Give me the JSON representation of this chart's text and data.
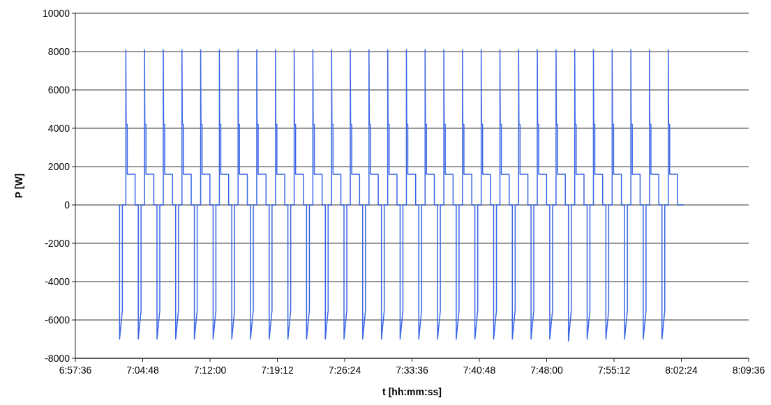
{
  "chart_data": {
    "type": "line",
    "xlabel": "t [hh:mm:ss]",
    "ylabel": "P [W]",
    "xlim": [
      6.96,
      8.16
    ],
    "xticks": [
      {
        "value": 6.96,
        "label": "6:57:36"
      },
      {
        "value": 7.08,
        "label": "7:04:48"
      },
      {
        "value": 7.2,
        "label": "7:12:00"
      },
      {
        "value": 7.32,
        "label": "7:19:12"
      },
      {
        "value": 7.44,
        "label": "7:26:24"
      },
      {
        "value": 7.56,
        "label": "7:33:36"
      },
      {
        "value": 7.68,
        "label": "7:40:48"
      },
      {
        "value": 7.8,
        "label": "7:48:00"
      },
      {
        "value": 7.92,
        "label": "7:55:12"
      },
      {
        "value": 8.04,
        "label": "8:02:24"
      },
      {
        "value": 8.16,
        "label": "8:09:36"
      }
    ],
    "ylim": [
      -8000,
      10000
    ],
    "yticks": [
      -8000,
      -6000,
      -4000,
      -2000,
      0,
      2000,
      4000,
      6000,
      8000,
      10000
    ],
    "grid": "y",
    "marker": "none",
    "line_style": "solid",
    "series": [
      {
        "color": "#3a66e6",
        "x": [
          7.0388,
          7.0388,
          7.0438,
          7.0438,
          7.05,
          7.05,
          7.0506,
          7.0525,
          7.0525,
          7.0665,
          7.0665,
          7.0721,
          7.0721,
          7.0771,
          7.0771,
          7.0833,
          7.0833,
          7.0839,
          7.0858,
          7.0858,
          7.0998,
          7.0998,
          7.1055,
          7.1055,
          7.1105,
          7.1105,
          7.1167,
          7.1167,
          7.1173,
          7.1192,
          7.1192,
          7.1332,
          7.1332,
          7.1388,
          7.1388,
          7.1438,
          7.1438,
          7.15,
          7.15,
          7.1506,
          7.1525,
          7.1525,
          7.1665,
          7.1665,
          7.1721,
          7.1721,
          7.1771,
          7.1771,
          7.1833,
          7.1833,
          7.1839,
          7.1858,
          7.1858,
          7.1998,
          7.1998,
          7.2055,
          7.2055,
          7.2105,
          7.2105,
          7.2167,
          7.2167,
          7.2173,
          7.2192,
          7.2192,
          7.2332,
          7.2332,
          7.2388,
          7.2388,
          7.2438,
          7.2438,
          7.25,
          7.25,
          7.2506,
          7.2525,
          7.2525,
          7.2665,
          7.2665,
          7.2721,
          7.2721,
          7.2771,
          7.2771,
          7.2833,
          7.2833,
          7.2839,
          7.2858,
          7.2858,
          7.2998,
          7.2998,
          7.3055,
          7.3055,
          7.3105,
          7.3105,
          7.3167,
          7.3167,
          7.3173,
          7.3192,
          7.3192,
          7.3332,
          7.3332,
          7.3388,
          7.3388,
          7.3438,
          7.3438,
          7.35,
          7.35,
          7.3506,
          7.3525,
          7.3525,
          7.3665,
          7.3665,
          7.3721,
          7.3721,
          7.3771,
          7.3771,
          7.3833,
          7.3833,
          7.3839,
          7.3858,
          7.3858,
          7.3998,
          7.3998,
          7.4055,
          7.4055,
          7.4105,
          7.4105,
          7.4167,
          7.4167,
          7.4173,
          7.4192,
          7.4192,
          7.4332,
          7.4332,
          7.4388,
          7.4388,
          7.4438,
          7.4438,
          7.45,
          7.45,
          7.4506,
          7.4525,
          7.4525,
          7.4665,
          7.4665,
          7.4721,
          7.4721,
          7.4771,
          7.4771,
          7.4833,
          7.4833,
          7.4839,
          7.4858,
          7.4858,
          7.4998,
          7.4998,
          7.5055,
          7.5055,
          7.5105,
          7.5105,
          7.5167,
          7.5167,
          7.5173,
          7.5192,
          7.5192,
          7.5332,
          7.5332,
          7.5388,
          7.5388,
          7.5438,
          7.5438,
          7.55,
          7.55,
          7.5506,
          7.5525,
          7.5525,
          7.5665,
          7.5665,
          7.5721,
          7.5721,
          7.5771,
          7.5771,
          7.5833,
          7.5833,
          7.5839,
          7.5858,
          7.5858,
          7.5998,
          7.5998,
          7.6055,
          7.6055,
          7.6105,
          7.6105,
          7.6167,
          7.6167,
          7.6173,
          7.6192,
          7.6192,
          7.6332,
          7.6332,
          7.6388,
          7.6388,
          7.6438,
          7.6438,
          7.65,
          7.65,
          7.6506,
          7.6525,
          7.6525,
          7.6665,
          7.6665,
          7.6721,
          7.6721,
          7.6771,
          7.6771,
          7.6833,
          7.6833,
          7.6839,
          7.6858,
          7.6858,
          7.6998,
          7.6998,
          7.7055,
          7.7055,
          7.7105,
          7.7105,
          7.7167,
          7.7167,
          7.7173,
          7.7192,
          7.7192,
          7.7332,
          7.7332,
          7.7388,
          7.7388,
          7.7438,
          7.7438,
          7.75,
          7.75,
          7.7506,
          7.7525,
          7.7525,
          7.7665,
          7.7665,
          7.7721,
          7.7721,
          7.7771,
          7.7771,
          7.7833,
          7.7833,
          7.7839,
          7.7858,
          7.7858,
          7.7998,
          7.7998,
          7.8055,
          7.8055,
          7.8105,
          7.8105,
          7.8167,
          7.8167,
          7.8173,
          7.8192,
          7.8192,
          7.8332,
          7.8332,
          7.8388,
          7.8388,
          7.8438,
          7.8438,
          7.85,
          7.85,
          7.8506,
          7.8525,
          7.8525,
          7.8665,
          7.8665,
          7.8721,
          7.8721,
          7.8771,
          7.8771,
          7.8833,
          7.8833,
          7.8839,
          7.8858,
          7.8858,
          7.8998,
          7.8998,
          7.9055,
          7.9055,
          7.9105,
          7.9105,
          7.9167,
          7.9167,
          7.9173,
          7.9192,
          7.9192,
          7.9332,
          7.9332,
          7.9388,
          7.9388,
          7.9438,
          7.9438,
          7.95,
          7.95,
          7.9506,
          7.9525,
          7.9525,
          7.9665,
          7.9665,
          7.9721,
          7.9721,
          7.9771,
          7.9771,
          7.9833,
          7.9833,
          7.9839,
          7.9858,
          7.9858,
          7.9998,
          7.9998,
          8.0055,
          8.0055,
          8.0105,
          8.0105,
          8.0167,
          8.0167,
          8.0173,
          8.0192,
          8.0192,
          8.0332,
          8.0332,
          8.0443
        ],
        "values": [
          0,
          -7000,
          -5500,
          0,
          0,
          8100,
          4200,
          4200,
          1600,
          1600,
          0,
          0,
          -7000,
          -5500,
          0,
          0,
          8100,
          4200,
          4200,
          1600,
          1600,
          0,
          0,
          -7000,
          -5500,
          0,
          0,
          8100,
          4200,
          4200,
          1600,
          1600,
          0,
          0,
          -7000,
          -5500,
          0,
          0,
          8100,
          4200,
          4200,
          1600,
          1600,
          0,
          0,
          -7000,
          -5500,
          0,
          0,
          8100,
          4200,
          4200,
          1600,
          1600,
          0,
          0,
          -7000,
          -5500,
          0,
          0,
          8100,
          4200,
          4200,
          1600,
          1600,
          0,
          0,
          -7000,
          -5500,
          0,
          0,
          8100,
          4200,
          4200,
          1600,
          1600,
          0,
          0,
          -7000,
          -5500,
          0,
          0,
          8100,
          4200,
          4200,
          1600,
          1600,
          0,
          0,
          -7000,
          -5500,
          0,
          0,
          8100,
          4200,
          4200,
          1600,
          1600,
          0,
          0,
          -7000,
          -5500,
          0,
          0,
          8100,
          4200,
          4200,
          1600,
          1600,
          0,
          0,
          -7000,
          -5500,
          0,
          0,
          8100,
          4200,
          4200,
          1600,
          1600,
          0,
          0,
          -7000,
          -5500,
          0,
          0,
          8100,
          4200,
          4200,
          1600,
          1600,
          0,
          0,
          -7000,
          -5500,
          0,
          0,
          8100,
          4200,
          4200,
          1600,
          1600,
          0,
          0,
          -7000,
          -5500,
          0,
          0,
          8100,
          4200,
          4200,
          1600,
          1600,
          0,
          0,
          -7000,
          -5500,
          0,
          0,
          8100,
          4200,
          4200,
          1600,
          1600,
          0,
          0,
          -7000,
          -5500,
          0,
          0,
          8100,
          4200,
          4200,
          1600,
          1600,
          0,
          0,
          -7000,
          -5500,
          0,
          0,
          8100,
          4200,
          4200,
          1600,
          1600,
          0,
          0,
          -7000,
          -5500,
          0,
          0,
          8100,
          4200,
          4200,
          1600,
          1600,
          0,
          0,
          -7000,
          -5500,
          0,
          0,
          8100,
          4200,
          4200,
          1600,
          1600,
          0,
          0,
          -7000,
          -5500,
          0,
          0,
          8100,
          4200,
          4200,
          1600,
          1600,
          0,
          0,
          -7000,
          -5500,
          0,
          0,
          8100,
          4200,
          4200,
          1600,
          1600,
          0,
          0,
          -7000,
          -5500,
          0,
          0,
          8100,
          4200,
          4200,
          1600,
          1600,
          0,
          0,
          -7000,
          -5500,
          0,
          0,
          8100,
          4200,
          4200,
          1600,
          1600,
          0,
          0,
          -7000,
          -5500,
          0,
          0,
          8100,
          4200,
          4200,
          1600,
          1600,
          0,
          0,
          -7100,
          -5500,
          0,
          0,
          8100,
          4200,
          4200,
          1600,
          1600,
          0,
          0,
          -7000,
          -5500,
          0,
          0,
          8100,
          4200,
          4200,
          1600,
          1600,
          0,
          0,
          -7000,
          -5500,
          0,
          0,
          8100,
          4200,
          4200,
          1600,
          1600,
          0,
          0,
          -7000,
          -5500,
          0,
          0,
          8100,
          4200,
          4200,
          1600,
          1600,
          0,
          0,
          -7000,
          -5500,
          0,
          0,
          8100,
          4200,
          4200,
          1600,
          1600,
          0,
          0,
          -7000,
          -5500,
          0,
          0,
          8100,
          4200,
          4200,
          1600,
          1600,
          0,
          0
        ]
      }
    ]
  }
}
